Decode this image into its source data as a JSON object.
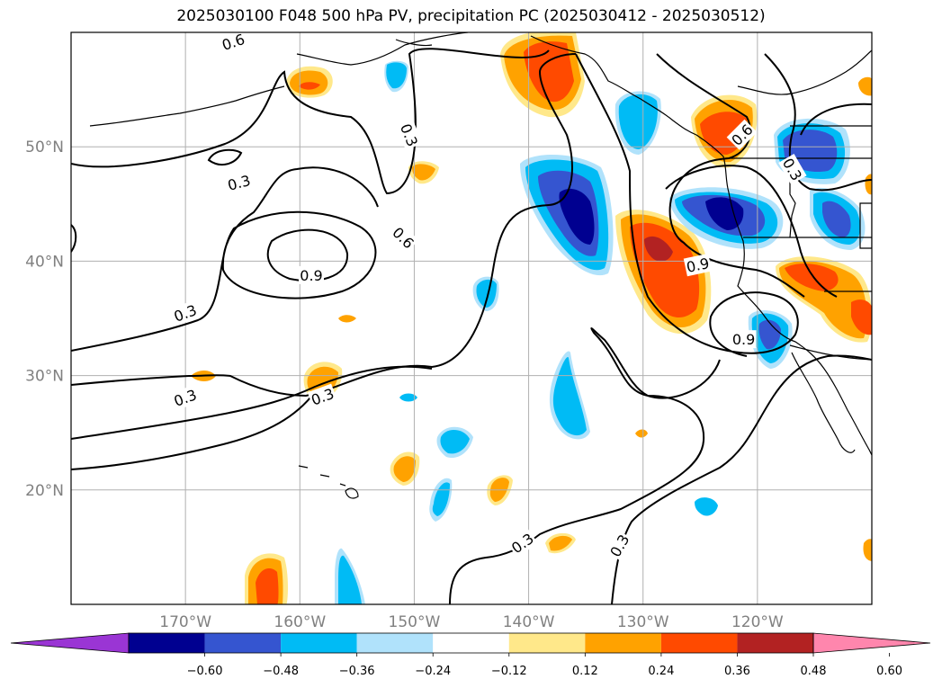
{
  "title": "2025030100 F048 500 hPa PV, precipitation PC (2025030412 - 2025030512)",
  "map": {
    "projection": "plate-carree",
    "lon_range": [
      -180,
      -110
    ],
    "lat_range": [
      10,
      60
    ],
    "grid": true,
    "lon_ticks": [
      {
        "value": -170,
        "label": "170°W"
      },
      {
        "value": -160,
        "label": "160°W"
      },
      {
        "value": -150,
        "label": "150°W"
      },
      {
        "value": -140,
        "label": "140°W"
      },
      {
        "value": -130,
        "label": "130°W"
      },
      {
        "value": -120,
        "label": "120°W"
      }
    ],
    "lat_ticks": [
      {
        "value": 50,
        "label": "50°N"
      },
      {
        "value": 40,
        "label": "40°N"
      },
      {
        "value": 30,
        "label": "30°N"
      },
      {
        "value": 20,
        "label": "20°N"
      }
    ]
  },
  "pv_contour_labels": [
    {
      "text": "0.6",
      "lon": -165.8,
      "lat": 59.1,
      "angle": -18
    },
    {
      "text": "0.3",
      "lon": -150.5,
      "lat": 51.0,
      "angle": 68
    },
    {
      "text": "0.6",
      "lon": -121.3,
      "lat": 51.0,
      "angle": -45
    },
    {
      "text": "0.3",
      "lon": -117.0,
      "lat": 48.0,
      "angle": 60
    },
    {
      "text": "0.3",
      "lon": -165.3,
      "lat": 46.8,
      "angle": -15
    },
    {
      "text": "0.6",
      "lon": -151.0,
      "lat": 42.0,
      "angle": 45
    },
    {
      "text": "0.9",
      "lon": -159.0,
      "lat": 38.7,
      "angle": 0
    },
    {
      "text": "0.9",
      "lon": -125.2,
      "lat": 39.6,
      "angle": -12
    },
    {
      "text": "0.3",
      "lon": -170.0,
      "lat": 35.4,
      "angle": -20
    },
    {
      "text": "0.9",
      "lon": -121.2,
      "lat": 33.1,
      "angle": 0
    },
    {
      "text": "0.3",
      "lon": -170.0,
      "lat": 28.0,
      "angle": -20
    },
    {
      "text": "0.3",
      "lon": -158.0,
      "lat": 28.1,
      "angle": -20
    },
    {
      "text": "0.3",
      "lon": -140.5,
      "lat": 15.3,
      "angle": -35
    },
    {
      "text": "0.3",
      "lon": -132.0,
      "lat": 15.1,
      "angle": -60
    }
  ],
  "colorbar": {
    "colors": [
      "#9a35d4",
      "#000090",
      "#3555d0",
      "#00bbf5",
      "#b0e2fb",
      "#ffffff",
      "#ffe88a",
      "#ffa200",
      "#ff4a00",
      "#b22222",
      "#ff86ad"
    ],
    "tick_labels": [
      "−0.60",
      "−0.48",
      "−0.36",
      "−0.24",
      "−0.12",
      "0.12",
      "0.24",
      "0.36",
      "0.48",
      "0.60"
    ]
  },
  "colors": {
    "pos_1": "#ffe88a",
    "pos_2": "#ffa200",
    "pos_3": "#ff4a00",
    "pos_4": "#b22222",
    "neg_1": "#b0e2fb",
    "neg_2": "#00bbf5",
    "neg_3": "#3555d0",
    "neg_4": "#000090",
    "grid": "#b0b0b0",
    "contour": "#000000"
  }
}
